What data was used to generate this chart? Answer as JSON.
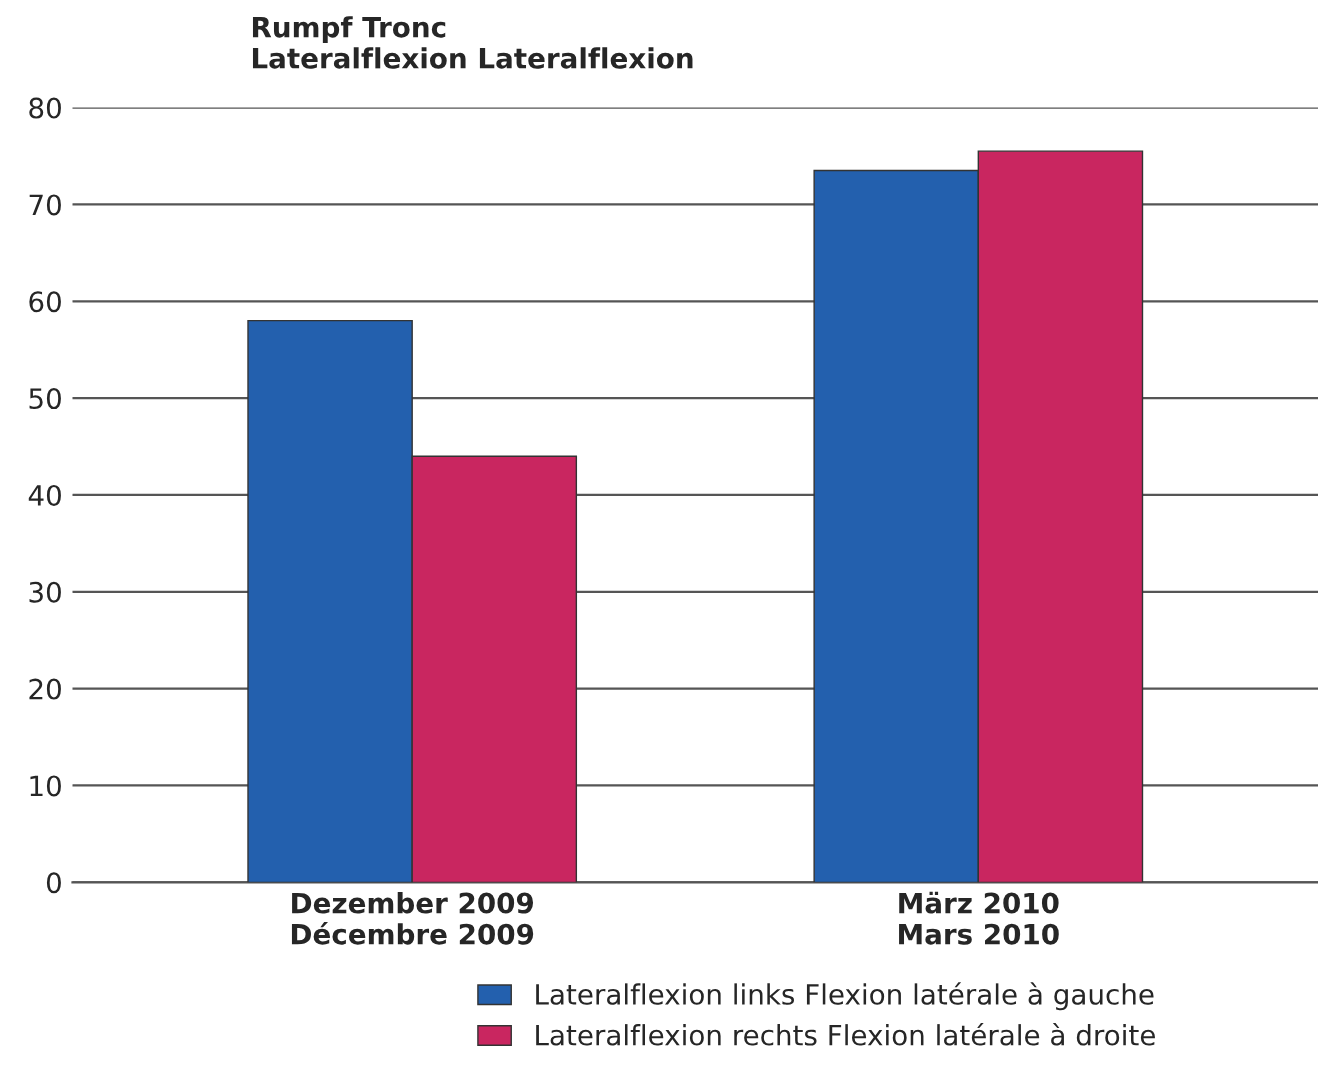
{
  "chart_data": {
    "type": "bar",
    "title": "Rumpf Tronc\nLateralflexion Lateralflexion",
    "categories": [
      "Dezember 2009\nDécembre 2009",
      "März 2010\nMars 2010"
    ],
    "series": [
      {
        "name": "Lateralflexion links Flexion latérale à gauche",
        "color": "#2360ae",
        "values": [
          58,
          73.5
        ]
      },
      {
        "name": "Lateralflexion rechts Flexion latérale à droite",
        "color": "#c92660",
        "values": [
          44,
          75.5
        ]
      }
    ],
    "ylim": [
      0,
      80
    ],
    "yticks": [
      0,
      10,
      20,
      30,
      40,
      50,
      60,
      70,
      80
    ],
    "grid": "y",
    "legend": "bottom"
  }
}
